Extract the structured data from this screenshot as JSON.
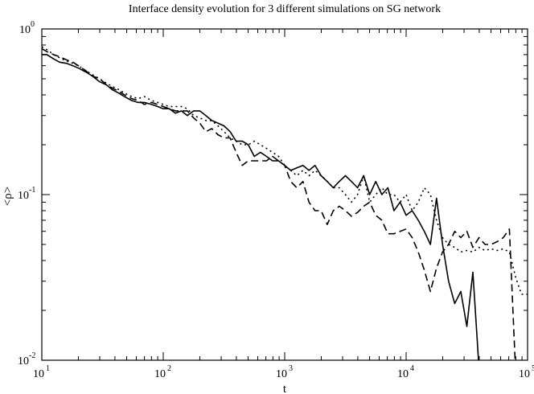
{
  "chart_data": {
    "type": "line",
    "title": "Interface density evolution for 3 different simulations on SG network",
    "xlabel": "t",
    "ylabel": "<ρ>",
    "xscale": "log",
    "yscale": "log",
    "xlim": [
      10,
      100000
    ],
    "ylim": [
      0.01,
      1
    ],
    "xticks": [
      {
        "value": 10,
        "base": "10",
        "exp": "1"
      },
      {
        "value": 100,
        "base": "10",
        "exp": "2"
      },
      {
        "value": 1000,
        "base": "10",
        "exp": "3"
      },
      {
        "value": 10000,
        "base": "10",
        "exp": "4"
      },
      {
        "value": 100000,
        "base": "10",
        "exp": "5"
      }
    ],
    "yticks": [
      {
        "value": 0.01,
        "base": "10",
        "exp": "-2"
      },
      {
        "value": 0.1,
        "base": "10",
        "exp": "-1"
      },
      {
        "value": 1,
        "base": "10",
        "exp": "0"
      }
    ],
    "grid": false,
    "legend": "none",
    "series": [
      {
        "style": "solid",
        "x": [
          10,
          11,
          12.5,
          14,
          16,
          18,
          20,
          23,
          26,
          30,
          34,
          38,
          43,
          48,
          55,
          62,
          70,
          80,
          90,
          100,
          112,
          126,
          141,
          158,
          178,
          200,
          224,
          251,
          282,
          316,
          355,
          398,
          447,
          501,
          562,
          631,
          708,
          794,
          891,
          1000,
          1122,
          1259,
          1413,
          1585,
          1778,
          1995,
          2239,
          2512,
          2818,
          3162,
          3548,
          3981,
          4467,
          5012,
          5623,
          6310,
          7079,
          7943,
          8913,
          10000,
          11220,
          12589,
          14125,
          15849,
          17783,
          19953,
          22387,
          25119,
          28184,
          31623,
          35481,
          39811
        ],
        "y": [
          0.7,
          0.7,
          0.66,
          0.63,
          0.62,
          0.6,
          0.58,
          0.55,
          0.52,
          0.48,
          0.46,
          0.43,
          0.41,
          0.39,
          0.37,
          0.36,
          0.36,
          0.35,
          0.34,
          0.33,
          0.33,
          0.31,
          0.32,
          0.3,
          0.32,
          0.32,
          0.3,
          0.28,
          0.27,
          0.26,
          0.24,
          0.21,
          0.21,
          0.2,
          0.17,
          0.18,
          0.17,
          0.16,
          0.16,
          0.15,
          0.14,
          0.145,
          0.15,
          0.14,
          0.15,
          0.13,
          0.12,
          0.11,
          0.12,
          0.13,
          0.12,
          0.11,
          0.13,
          0.1,
          0.12,
          0.1,
          0.11,
          0.08,
          0.09,
          0.075,
          0.08,
          0.07,
          0.06,
          0.05,
          0.095,
          0.05,
          0.03,
          0.022,
          0.026,
          0.016,
          0.034,
          0.009
        ]
      },
      {
        "style": "dashed",
        "x": [
          10,
          11,
          12.5,
          14,
          16,
          18,
          20,
          23,
          26,
          30,
          34,
          38,
          43,
          48,
          55,
          62,
          70,
          80,
          90,
          100,
          112,
          126,
          141,
          158,
          178,
          200,
          224,
          251,
          282,
          316,
          355,
          398,
          447,
          501,
          562,
          631,
          708,
          794,
          891,
          1000,
          1122,
          1259,
          1413,
          1585,
          1778,
          1995,
          2239,
          2512,
          2818,
          3162,
          3548,
          3981,
          4467,
          5012,
          5623,
          6310,
          7079,
          7943,
          8913,
          10000,
          11220,
          12589,
          14125,
          15849,
          17783,
          19953,
          22387,
          25119,
          28184,
          31623,
          35481,
          39811,
          44668,
          50119,
          56234,
          63096,
          70795,
          79433
        ],
        "y": [
          0.76,
          0.73,
          0.7,
          0.68,
          0.65,
          0.63,
          0.6,
          0.56,
          0.52,
          0.5,
          0.46,
          0.44,
          0.42,
          0.4,
          0.38,
          0.37,
          0.35,
          0.36,
          0.35,
          0.34,
          0.33,
          0.32,
          0.32,
          0.32,
          0.29,
          0.27,
          0.24,
          0.25,
          0.23,
          0.22,
          0.22,
          0.18,
          0.15,
          0.16,
          0.16,
          0.16,
          0.16,
          0.17,
          0.16,
          0.15,
          0.12,
          0.11,
          0.12,
          0.09,
          0.08,
          0.08,
          0.066,
          0.08,
          0.085,
          0.08,
          0.074,
          0.078,
          0.085,
          0.09,
          0.075,
          0.07,
          0.058,
          0.058,
          0.06,
          0.062,
          0.055,
          0.045,
          0.035,
          0.026,
          0.036,
          0.045,
          0.05,
          0.06,
          0.055,
          0.06,
          0.048,
          0.055,
          0.05,
          0.05,
          0.052,
          0.055,
          0.062,
          0.009
        ]
      },
      {
        "style": "dotted",
        "x": [
          10,
          11,
          12.5,
          14,
          16,
          18,
          20,
          23,
          26,
          30,
          34,
          38,
          43,
          48,
          55,
          62,
          70,
          80,
          90,
          100,
          112,
          126,
          141,
          158,
          178,
          200,
          224,
          251,
          282,
          316,
          355,
          398,
          447,
          501,
          562,
          631,
          708,
          794,
          891,
          1000,
          1122,
          1259,
          1413,
          1585,
          1778,
          1995,
          2239,
          2512,
          2818,
          3162,
          3548,
          3981,
          4467,
          5012,
          5623,
          6310,
          7079,
          7943,
          8913,
          10000,
          11220,
          12589,
          14125,
          15849,
          17783,
          19953,
          22387,
          25119,
          28184,
          31623,
          35481,
          39811,
          44668,
          50119,
          56234,
          63096,
          70795,
          79433,
          89125,
          100000
        ],
        "y": [
          0.78,
          0.75,
          0.7,
          0.67,
          0.64,
          0.62,
          0.6,
          0.56,
          0.53,
          0.5,
          0.47,
          0.45,
          0.43,
          0.41,
          0.39,
          0.38,
          0.39,
          0.37,
          0.36,
          0.35,
          0.34,
          0.34,
          0.34,
          0.33,
          0.3,
          0.29,
          0.28,
          0.28,
          0.26,
          0.24,
          0.22,
          0.21,
          0.2,
          0.2,
          0.21,
          0.2,
          0.19,
          0.18,
          0.17,
          0.15,
          0.14,
          0.13,
          0.14,
          0.13,
          0.14,
          0.13,
          0.12,
          0.11,
          0.11,
          0.1,
          0.09,
          0.1,
          0.13,
          0.09,
          0.1,
          0.11,
          0.1,
          0.1,
          0.09,
          0.1,
          0.08,
          0.09,
          0.11,
          0.1,
          0.07,
          0.055,
          0.05,
          0.048,
          0.045,
          0.046,
          0.045,
          0.048,
          0.046,
          0.047,
          0.046,
          0.047,
          0.045,
          0.032,
          0.025,
          0.025
        ]
      }
    ]
  }
}
